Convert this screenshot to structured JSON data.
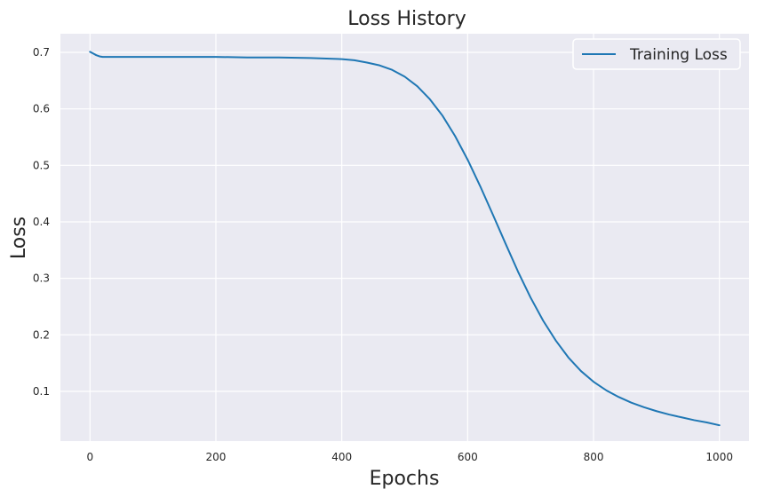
{
  "chart_data": {
    "type": "line",
    "title": "Loss History",
    "xlabel": "Epochs",
    "ylabel": "Loss",
    "xlim": [
      -47,
      1047
    ],
    "ylim": [
      0.012,
      0.733
    ],
    "xticks": [
      0,
      200,
      400,
      600,
      800,
      1000
    ],
    "yticks": [
      0.1,
      0.2,
      0.3,
      0.4,
      0.5,
      0.6,
      0.7
    ],
    "grid": true,
    "legend_position": "top-right",
    "colors": {
      "background": "#eaeaf2",
      "grid": "#ffffff",
      "series": "#1f77b4"
    },
    "series": [
      {
        "name": "Training Loss",
        "x": [
          0,
          5,
          10,
          15,
          20,
          25,
          30,
          40,
          50,
          75,
          100,
          150,
          200,
          250,
          300,
          350,
          400,
          420,
          440,
          460,
          480,
          500,
          520,
          540,
          560,
          580,
          600,
          620,
          640,
          660,
          680,
          700,
          720,
          740,
          760,
          780,
          800,
          820,
          840,
          860,
          880,
          900,
          920,
          940,
          960,
          980,
          1000
        ],
        "y": [
          0.701,
          0.698,
          0.695,
          0.693,
          0.692,
          0.692,
          0.692,
          0.692,
          0.692,
          0.692,
          0.692,
          0.692,
          0.692,
          0.691,
          0.691,
          0.69,
          0.688,
          0.686,
          0.682,
          0.677,
          0.669,
          0.657,
          0.64,
          0.617,
          0.588,
          0.552,
          0.51,
          0.463,
          0.413,
          0.362,
          0.312,
          0.266,
          0.225,
          0.19,
          0.16,
          0.136,
          0.117,
          0.102,
          0.09,
          0.08,
          0.072,
          0.065,
          0.059,
          0.054,
          0.049,
          0.045,
          0.04
        ]
      }
    ]
  }
}
